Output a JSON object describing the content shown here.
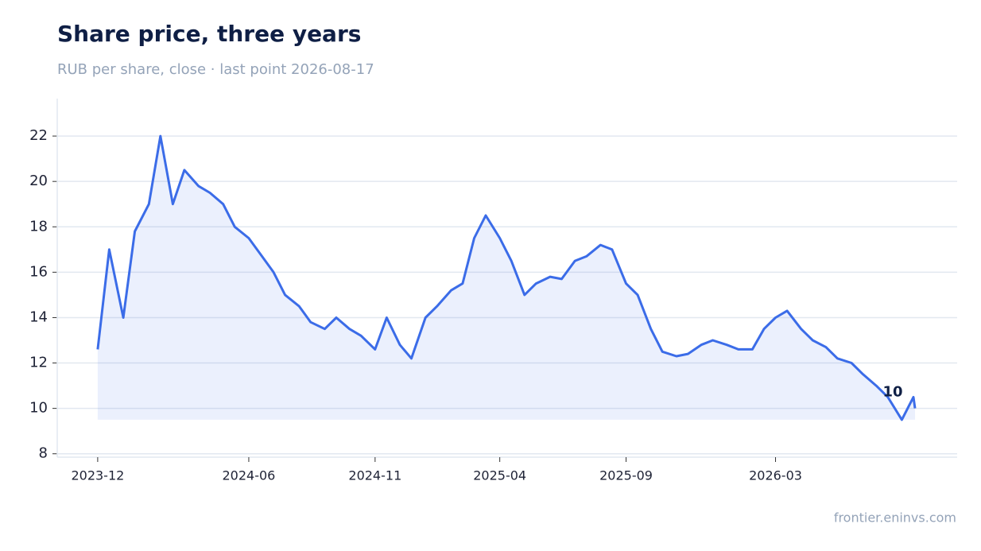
{
  "chart_data": {
    "type": "line",
    "title": "Share price, three years",
    "subtitle": "RUB per share, close · last point 2026-08-17",
    "source": "frontier.eninvs.com",
    "color": "#3b6ce8",
    "grid": true,
    "x": [
      "2023-12-01",
      "2023-12-15",
      "2024-01-01",
      "2024-01-15",
      "2024-02-01",
      "2024-02-15",
      "2024-03-01",
      "2024-03-15",
      "2024-04-01",
      "2024-04-15",
      "2024-05-01",
      "2024-05-15",
      "2024-06-01",
      "2024-06-15",
      "2024-07-01",
      "2024-07-15",
      "2024-08-01",
      "2024-08-15",
      "2024-09-01",
      "2024-09-15",
      "2024-10-01",
      "2024-10-15",
      "2024-11-01",
      "2024-11-15",
      "2024-12-01",
      "2024-12-15",
      "2025-01-01",
      "2025-01-15",
      "2025-02-01",
      "2025-02-15",
      "2025-03-01",
      "2025-03-15",
      "2025-04-01",
      "2025-04-15",
      "2025-05-01",
      "2025-05-15",
      "2025-06-01",
      "2025-06-15",
      "2025-07-01",
      "2025-07-15",
      "2025-08-01",
      "2025-08-15",
      "2025-09-01",
      "2025-09-15",
      "2025-10-01",
      "2025-10-15",
      "2025-11-01",
      "2025-11-15",
      "2025-12-01",
      "2025-12-15",
      "2026-01-01",
      "2026-01-15",
      "2026-02-01",
      "2026-02-15",
      "2026-03-01",
      "2026-03-15",
      "2026-04-01",
      "2026-04-15",
      "2026-05-01",
      "2026-05-15",
      "2026-06-01",
      "2026-06-15",
      "2026-07-01",
      "2026-07-15",
      "2026-08-01",
      "2026-08-15",
      "2026-08-17"
    ],
    "values": [
      12.6,
      17.0,
      14.0,
      17.8,
      19.0,
      22.0,
      19.0,
      20.5,
      19.8,
      19.5,
      19.0,
      18.0,
      17.5,
      16.8,
      16.0,
      15.0,
      14.5,
      13.8,
      13.5,
      14.0,
      13.5,
      13.2,
      12.6,
      14.0,
      12.8,
      12.2,
      14.0,
      14.5,
      15.2,
      15.5,
      17.5,
      18.5,
      17.5,
      16.5,
      15.0,
      15.5,
      15.8,
      15.7,
      16.5,
      16.7,
      17.2,
      17.0,
      15.5,
      15.0,
      13.5,
      12.5,
      12.3,
      12.4,
      12.8,
      13.0,
      12.8,
      12.6,
      12.6,
      13.5,
      14.0,
      14.3,
      13.5,
      13.0,
      12.7,
      12.2,
      12.0,
      11.5,
      11.0,
      10.5,
      9.5,
      10.5,
      10
    ],
    "xlim": [
      "2023-10-13",
      "2026-10-07"
    ],
    "xticks": [
      {
        "value": "2023-12-01",
        "label": "2023-12"
      },
      {
        "value": "2024-06-01",
        "label": "2024-06"
      },
      {
        "value": "2024-11-01",
        "label": "2024-11"
      },
      {
        "value": "2025-04-01",
        "label": "2025-04"
      },
      {
        "value": "2025-09-01",
        "label": "2025-09"
      },
      {
        "value": "2026-03-01",
        "label": "2026-03"
      }
    ],
    "ylim": [
      7.85,
      23.65
    ],
    "yticks": [
      8,
      10,
      12,
      14,
      16,
      18,
      20,
      22
    ]
  }
}
